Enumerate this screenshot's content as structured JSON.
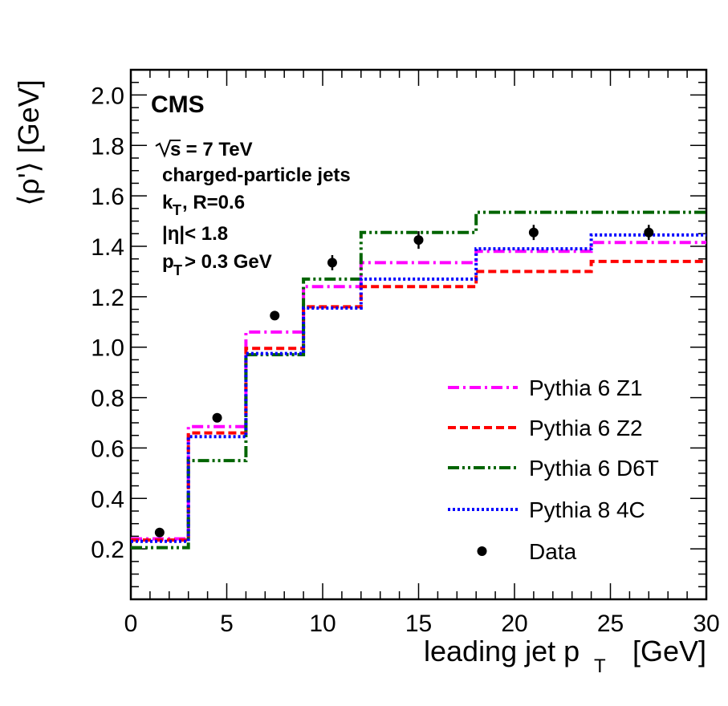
{
  "chart_data": {
    "type": "step-line+scatter",
    "xlabel": "leading jet p",
    "xlabel_sub": "T",
    "xlabel_unit": "[GeV]",
    "ylabel": "⟨ρ'⟩ [GeV]",
    "xlim": [
      0,
      30
    ],
    "ylim": [
      0,
      2.1
    ],
    "xticks": [
      "0",
      "5",
      "10",
      "15",
      "20",
      "25",
      "30"
    ],
    "yticks": [
      "0.2",
      "0.4",
      "0.6",
      "0.8",
      "1.0",
      "1.2",
      "1.4",
      "1.6",
      "1.8",
      "2.0"
    ],
    "bin_edges": [
      0,
      3,
      6,
      9,
      12,
      18,
      24,
      30
    ],
    "series": [
      {
        "name": "Pythia 6 Z1",
        "color": "#ff00ff",
        "dash": "dashdot",
        "values": [
          0.24,
          0.685,
          1.06,
          1.24,
          1.335,
          1.38,
          1.415
        ]
      },
      {
        "name": "Pythia 6 Z2",
        "color": "#ff0000",
        "dash": "dashed",
        "values": [
          0.235,
          0.66,
          0.995,
          1.16,
          1.24,
          1.3,
          1.34
        ]
      },
      {
        "name": "Pythia 6 D6T",
        "color": "#006400",
        "dash": "dashdotdot",
        "values": [
          0.205,
          0.55,
          0.97,
          1.27,
          1.455,
          1.535,
          1.535
        ]
      },
      {
        "name": "Pythia 8 4C",
        "color": "#0000ff",
        "dash": "dotted",
        "values": [
          0.23,
          0.645,
          0.975,
          1.155,
          1.27,
          1.39,
          1.445
        ]
      }
    ],
    "data_points": {
      "name": "Data",
      "color": "#000000",
      "x": [
        1.5,
        4.5,
        7.5,
        10.5,
        15,
        21,
        27
      ],
      "y": [
        0.265,
        0.72,
        1.125,
        1.335,
        1.425,
        1.455,
        1.455
      ],
      "yerr": [
        0.012,
        0.012,
        0.015,
        0.03,
        0.035,
        0.03,
        0.03
      ]
    },
    "legend_position": "bottom-right",
    "annotations": {
      "cms": "CMS",
      "energy_prefix": "s",
      "energy_suffix": " = 7 TeV",
      "jets": "charged-particle jets",
      "algo_main": "k",
      "algo_sub": "T",
      "algo_rest": ", R=0.6",
      "eta_cut": "|η|< 1.8",
      "pt_main": "p",
      "pt_sub": "T",
      "pt_rest": "> 0.3 GeV"
    }
  }
}
